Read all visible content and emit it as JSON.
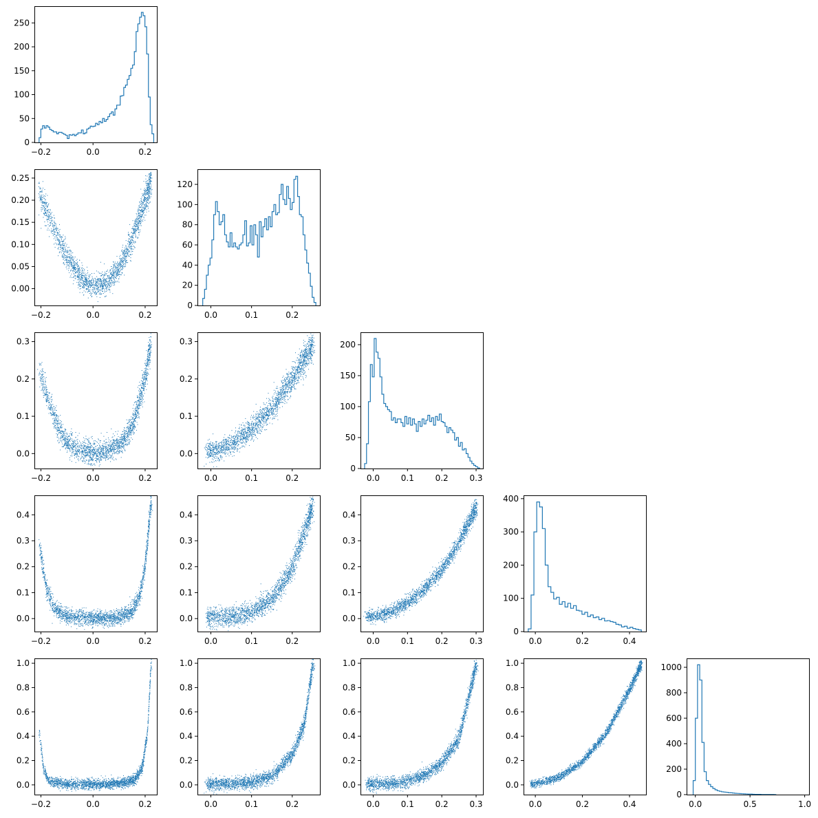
{
  "figure": {
    "type": "corner-plot",
    "color": "#1f77b4"
  },
  "chart_data": [
    {
      "id": "hist-1",
      "type": "histogram",
      "row": 0,
      "col": 0,
      "xlim": [
        -0.225,
        0.245
      ],
      "ylim": [
        0,
        285
      ],
      "xticks": [
        -0.2,
        0.0,
        0.2
      ],
      "xticklabels": [
        "−0.2",
        "0.0",
        "0.2"
      ],
      "yticks": [
        0,
        50,
        100,
        150,
        200,
        250
      ],
      "yticklabels": [
        "0",
        "50",
        "100",
        "150",
        "200",
        "250"
      ],
      "bins": {
        "start": -0.207,
        "end": 0.233
      },
      "counts": [
        10,
        28,
        35,
        30,
        35,
        32,
        27,
        25,
        22,
        22,
        18,
        21,
        21,
        19,
        17,
        15,
        8,
        16,
        15,
        17,
        14,
        17,
        20,
        20,
        26,
        18,
        20,
        28,
        30,
        34,
        33,
        34,
        40,
        37,
        44,
        41,
        50,
        44,
        48,
        54,
        60,
        64,
        57,
        70,
        78,
        78,
        97,
        98,
        115,
        120,
        132,
        140,
        155,
        162,
        190,
        232,
        248,
        262,
        272,
        265,
        242,
        185,
        95,
        37,
        18
      ]
    },
    {
      "id": "scatter-2-1",
      "type": "scatter",
      "row": 1,
      "col": 0,
      "xlim": [
        -0.225,
        0.245
      ],
      "ylim": [
        -0.038,
        0.27
      ],
      "xticks": [
        -0.2,
        0.0,
        0.2
      ],
      "xticklabels": [
        "−0.2",
        "0.0",
        "0.2"
      ],
      "yticks": [
        0,
        0.05,
        0.1,
        0.15,
        0.2,
        0.25
      ],
      "yticklabels": [
        "0.00",
        "0.05",
        "0.10",
        "0.15",
        "0.20",
        "0.25"
      ],
      "curve": [
        [
          -0.205,
          0.21
        ],
        [
          -0.15,
          0.138
        ],
        [
          -0.1,
          0.07
        ],
        [
          -0.05,
          0.026
        ],
        [
          0.0,
          0.005
        ],
        [
          0.05,
          0.013
        ],
        [
          0.1,
          0.046
        ],
        [
          0.15,
          0.11
        ],
        [
          0.2,
          0.2
        ],
        [
          0.222,
          0.245
        ]
      ],
      "spread": 0.012
    },
    {
      "id": "hist-2",
      "type": "histogram",
      "row": 1,
      "col": 1,
      "xlim": [
        -0.033,
        0.268
      ],
      "ylim": [
        0,
        135
      ],
      "xticks": [
        0.0,
        0.1,
        0.2
      ],
      "xticklabels": [
        "0.0",
        "0.1",
        "0.2"
      ],
      "yticks": [
        0,
        20,
        40,
        60,
        80,
        100,
        120
      ],
      "yticklabels": [
        "0",
        "20",
        "40",
        "60",
        "80",
        "100",
        "120"
      ],
      "bins": {
        "start": -0.02,
        "end": 0.258
      },
      "counts": [
        7,
        16,
        30,
        40,
        47,
        65,
        90,
        103,
        93,
        80,
        83,
        90,
        70,
        63,
        58,
        72,
        58,
        62,
        58,
        56,
        60,
        62,
        70,
        84,
        59,
        62,
        79,
        60,
        80,
        70,
        48,
        83,
        68,
        78,
        86,
        75,
        88,
        78,
        93,
        100,
        90,
        92,
        110,
        120,
        105,
        100,
        118,
        106,
        95,
        102,
        125,
        128,
        108,
        90,
        88,
        70,
        55,
        42,
        32,
        19,
        8,
        3
      ]
    },
    {
      "id": "scatter-3-1",
      "type": "scatter",
      "row": 2,
      "col": 0,
      "xlim": [
        -0.225,
        0.245
      ],
      "ylim": [
        -0.04,
        0.325
      ],
      "xticks": [
        -0.2,
        0.0,
        0.2
      ],
      "xticklabels": [
        "−0.2",
        "0.0",
        "0.2"
      ],
      "yticks": [
        0,
        0.1,
        0.2,
        0.3
      ],
      "yticklabels": [
        "0.0",
        "0.1",
        "0.2",
        "0.3"
      ],
      "curve": [
        [
          -0.205,
          0.22
        ],
        [
          -0.17,
          0.14
        ],
        [
          -0.13,
          0.065
        ],
        [
          -0.1,
          0.03
        ],
        [
          -0.05,
          0.008
        ],
        [
          0.0,
          0.003
        ],
        [
          0.05,
          0.006
        ],
        [
          0.1,
          0.02
        ],
        [
          0.15,
          0.07
        ],
        [
          0.2,
          0.2
        ],
        [
          0.222,
          0.3
        ]
      ],
      "spread": 0.014
    },
    {
      "id": "scatter-3-2",
      "type": "scatter",
      "row": 2,
      "col": 1,
      "xlim": [
        -0.033,
        0.268
      ],
      "ylim": [
        -0.04,
        0.325
      ],
      "xticks": [
        0.0,
        0.1,
        0.2
      ],
      "xticklabels": [
        "0.0",
        "0.1",
        "0.2"
      ],
      "yticks": [
        0,
        0.1,
        0.2,
        0.3
      ],
      "yticklabels": [
        "0.0",
        "0.1",
        "0.2",
        "0.3"
      ],
      "curve": [
        [
          -0.01,
          0.005
        ],
        [
          0.02,
          0.008
        ],
        [
          0.05,
          0.025
        ],
        [
          0.1,
          0.065
        ],
        [
          0.15,
          0.12
        ],
        [
          0.2,
          0.2
        ],
        [
          0.25,
          0.29
        ]
      ],
      "spread": 0.013
    },
    {
      "id": "hist-3",
      "type": "histogram",
      "row": 2,
      "col": 2,
      "xlim": [
        -0.037,
        0.32
      ],
      "ylim": [
        0,
        220
      ],
      "xticks": [
        0.0,
        0.1,
        0.2,
        0.3
      ],
      "xticklabels": [
        "0.0",
        "0.1",
        "0.2",
        "0.3"
      ],
      "yticks": [
        0,
        50,
        100,
        150,
        200
      ],
      "yticklabels": [
        "0",
        "50",
        "100",
        "150",
        "200"
      ],
      "bins": {
        "start": -0.025,
        "end": 0.31
      },
      "counts": [
        8,
        40,
        108,
        168,
        148,
        210,
        188,
        178,
        148,
        120,
        105,
        100,
        95,
        92,
        78,
        82,
        74,
        80,
        80,
        74,
        68,
        84,
        72,
        82,
        70,
        80,
        72,
        60,
        76,
        68,
        80,
        72,
        78,
        86,
        76,
        82,
        70,
        84,
        78,
        88,
        76,
        74,
        68,
        58,
        66,
        62,
        58,
        46,
        50,
        36,
        42,
        30,
        32,
        24,
        18,
        12,
        8,
        5,
        3,
        1
      ]
    },
    {
      "id": "scatter-4-1",
      "type": "scatter",
      "row": 3,
      "col": 0,
      "xlim": [
        -0.225,
        0.245
      ],
      "ylim": [
        -0.05,
        0.475
      ],
      "xticks": [
        -0.2,
        0.0,
        0.2
      ],
      "xticklabels": [
        "−0.2",
        "0.0",
        "0.2"
      ],
      "yticks": [
        0,
        0.1,
        0.2,
        0.3,
        0.4
      ],
      "yticklabels": [
        "0.0",
        "0.1",
        "0.2",
        "0.3",
        "0.4"
      ],
      "curve": [
        [
          -0.205,
          0.28
        ],
        [
          -0.18,
          0.12
        ],
        [
          -0.15,
          0.04
        ],
        [
          -0.1,
          0.008
        ],
        [
          0.0,
          0.0
        ],
        [
          0.1,
          0.004
        ],
        [
          0.15,
          0.03
        ],
        [
          0.18,
          0.09
        ],
        [
          0.2,
          0.2
        ],
        [
          0.222,
          0.44
        ]
      ],
      "spread": 0.014
    },
    {
      "id": "scatter-4-2",
      "type": "scatter",
      "row": 3,
      "col": 1,
      "xlim": [
        -0.033,
        0.268
      ],
      "ylim": [
        -0.05,
        0.475
      ],
      "xticks": [
        0.0,
        0.1,
        0.2
      ],
      "xticklabels": [
        "0.0",
        "0.1",
        "0.2"
      ],
      "yticks": [
        0,
        0.1,
        0.2,
        0.3,
        0.4
      ],
      "yticklabels": [
        "0.0",
        "0.1",
        "0.2",
        "0.3",
        "0.4"
      ],
      "curve": [
        [
          -0.01,
          0.003
        ],
        [
          0.05,
          0.006
        ],
        [
          0.1,
          0.025
        ],
        [
          0.15,
          0.075
        ],
        [
          0.2,
          0.19
        ],
        [
          0.25,
          0.43
        ]
      ],
      "spread": 0.018
    },
    {
      "id": "scatter-4-3",
      "type": "scatter",
      "row": 3,
      "col": 2,
      "xlim": [
        -0.037,
        0.32
      ],
      "ylim": [
        -0.05,
        0.475
      ],
      "xticks": [
        0.0,
        0.1,
        0.2,
        0.3
      ],
      "xticklabels": [
        "0.0",
        "0.1",
        "0.2",
        "0.3"
      ],
      "yticks": [
        0,
        0.1,
        0.2,
        0.3,
        0.4
      ],
      "yticklabels": [
        "0.0",
        "0.1",
        "0.2",
        "0.3",
        "0.4"
      ],
      "curve": [
        [
          -0.02,
          0.005
        ],
        [
          0.0,
          0.008
        ],
        [
          0.05,
          0.025
        ],
        [
          0.1,
          0.06
        ],
        [
          0.15,
          0.115
        ],
        [
          0.2,
          0.19
        ],
        [
          0.25,
          0.29
        ],
        [
          0.3,
          0.43
        ]
      ],
      "spread": 0.012
    },
    {
      "id": "hist-4",
      "type": "histogram",
      "row": 3,
      "col": 3,
      "xlim": [
        -0.05,
        0.47
      ],
      "ylim": [
        0,
        410
      ],
      "xticks": [
        0.0,
        0.2,
        0.4
      ],
      "xticklabels": [
        "0.0",
        "0.2",
        "0.4"
      ],
      "yticks": [
        0,
        100,
        200,
        300,
        400
      ],
      "yticklabels": [
        "0",
        "100",
        "200",
        "300",
        "400"
      ],
      "bins": {
        "start": -0.03,
        "end": 0.45
      },
      "counts": [
        8,
        110,
        300,
        390,
        375,
        310,
        200,
        135,
        118,
        98,
        103,
        82,
        90,
        74,
        85,
        70,
        78,
        64,
        62,
        52,
        58,
        45,
        50,
        42,
        44,
        36,
        40,
        32,
        33,
        30,
        28,
        22,
        20,
        14,
        16,
        10,
        13,
        9,
        7,
        5
      ]
    },
    {
      "id": "scatter-5-1",
      "type": "scatter",
      "row": 4,
      "col": 0,
      "xlim": [
        -0.225,
        0.245
      ],
      "ylim": [
        -0.08,
        1.04
      ],
      "xticks": [
        -0.2,
        0.0,
        0.2
      ],
      "xticklabels": [
        "−0.2",
        "0.0",
        "0.2"
      ],
      "yticks": [
        0,
        0.2,
        0.4,
        0.6,
        0.8,
        1.0
      ],
      "yticklabels": [
        "0.0",
        "0.2",
        "0.4",
        "0.6",
        "0.8",
        "1.0"
      ],
      "curve": [
        [
          -0.205,
          0.42
        ],
        [
          -0.19,
          0.13
        ],
        [
          -0.17,
          0.03
        ],
        [
          -0.1,
          0.006
        ],
        [
          0.0,
          0.004
        ],
        [
          0.1,
          0.008
        ],
        [
          0.16,
          0.04
        ],
        [
          0.19,
          0.15
        ],
        [
          0.21,
          0.45
        ],
        [
          0.222,
          0.98
        ]
      ],
      "spread": 0.02
    },
    {
      "id": "scatter-5-2",
      "type": "scatter",
      "row": 4,
      "col": 1,
      "xlim": [
        -0.033,
        0.268
      ],
      "ylim": [
        -0.08,
        1.04
      ],
      "xticks": [
        0.0,
        0.1,
        0.2
      ],
      "xticklabels": [
        "0.0",
        "0.1",
        "0.2"
      ],
      "yticks": [
        0,
        0.2,
        0.4,
        0.6,
        0.8,
        1.0
      ],
      "yticklabels": [
        "0.0",
        "0.2",
        "0.4",
        "0.6",
        "0.8",
        "1.0"
      ],
      "curve": [
        [
          -0.01,
          0.004
        ],
        [
          0.05,
          0.008
        ],
        [
          0.1,
          0.02
        ],
        [
          0.15,
          0.07
        ],
        [
          0.2,
          0.25
        ],
        [
          0.23,
          0.5
        ],
        [
          0.25,
          0.98
        ]
      ],
      "spread": 0.025
    },
    {
      "id": "scatter-5-3",
      "type": "scatter",
      "row": 4,
      "col": 2,
      "xlim": [
        -0.037,
        0.32
      ],
      "ylim": [
        -0.08,
        1.04
      ],
      "xticks": [
        0.0,
        0.1,
        0.2,
        0.3
      ],
      "xticklabels": [
        "0.0",
        "0.1",
        "0.2",
        "0.3"
      ],
      "yticks": [
        0,
        0.2,
        0.4,
        0.6,
        0.8,
        1.0
      ],
      "yticklabels": [
        "0.0",
        "0.2",
        "0.4",
        "0.6",
        "0.8",
        "1.0"
      ],
      "curve": [
        [
          -0.02,
          0.005
        ],
        [
          0.05,
          0.01
        ],
        [
          0.1,
          0.03
        ],
        [
          0.15,
          0.08
        ],
        [
          0.2,
          0.18
        ],
        [
          0.25,
          0.38
        ],
        [
          0.3,
          0.98
        ]
      ],
      "spread": 0.025
    },
    {
      "id": "scatter-5-4",
      "type": "scatter",
      "row": 4,
      "col": 3,
      "xlim": [
        -0.05,
        0.47
      ],
      "ylim": [
        -0.08,
        1.04
      ],
      "xticks": [
        0.0,
        0.2,
        0.4
      ],
      "xticklabels": [
        "0.0",
        "0.2",
        "0.4"
      ],
      "yticks": [
        0,
        0.2,
        0.4,
        0.6,
        0.8,
        1.0
      ],
      "yticklabels": [
        "0.0",
        "0.2",
        "0.4",
        "0.6",
        "0.8",
        "1.0"
      ],
      "curve": [
        [
          -0.02,
          0.005
        ],
        [
          0.0,
          0.008
        ],
        [
          0.1,
          0.06
        ],
        [
          0.2,
          0.19
        ],
        [
          0.3,
          0.42
        ],
        [
          0.4,
          0.78
        ],
        [
          0.45,
          0.99
        ]
      ],
      "spread": 0.015
    },
    {
      "id": "hist-5",
      "type": "histogram",
      "row": 4,
      "col": 4,
      "xlim": [
        -0.08,
        1.04
      ],
      "ylim": [
        0,
        1070
      ],
      "xticks": [
        0.0,
        0.5,
        1.0
      ],
      "xticklabels": [
        "0.0",
        "0.5",
        "1.0"
      ],
      "yticks": [
        0,
        200,
        400,
        600,
        800,
        1000
      ],
      "yticklabels": [
        "0",
        "200",
        "400",
        "600",
        "800",
        "1000"
      ],
      "bins": {
        "start": -0.02,
        "end": 0.74
      },
      "counts": [
        110,
        600,
        1020,
        900,
        410,
        180,
        110,
        80,
        62,
        48,
        38,
        30,
        26,
        22,
        20,
        18,
        15,
        14,
        12,
        10,
        9,
        8,
        7,
        6,
        5,
        4,
        4,
        3,
        2,
        2,
        2,
        1,
        1,
        1,
        1,
        1,
        1,
        0
      ]
    }
  ]
}
